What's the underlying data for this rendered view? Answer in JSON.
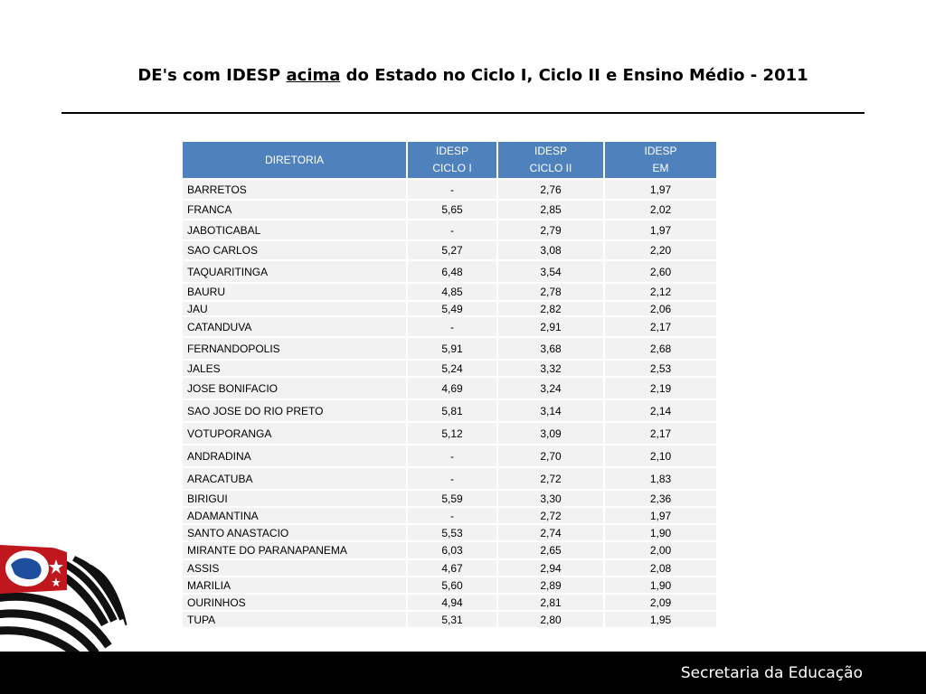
{
  "title": {
    "prefix": "DE's com IDESP",
    "emphasis": "acima",
    "suffix": "do Estado no Ciclo I, Ciclo II e Ensino Médio - 2011"
  },
  "table": {
    "headers": [
      {
        "line1": "DIRETORIA",
        "line2": ""
      },
      {
        "line1": "IDESP",
        "line2": "CICLO I"
      },
      {
        "line1": "IDESP",
        "line2": "CICLO II"
      },
      {
        "line1": "IDESP",
        "line2": "EM"
      }
    ],
    "rows": [
      [
        "BARRETOS",
        "-",
        "2,76",
        "1,97"
      ],
      [
        "FRANCA",
        "5,65",
        "2,85",
        "2,02"
      ],
      [
        "JABOTICABAL",
        "-",
        "2,79",
        "1,97"
      ],
      [
        "SAO CARLOS",
        "5,27",
        "3,08",
        "2,20"
      ],
      [
        "TAQUARITINGA",
        "6,48",
        "3,54",
        "2,60"
      ],
      [
        "BAURU",
        "4,85",
        "2,78",
        "2,12"
      ],
      [
        "JAU",
        "5,49",
        "2,82",
        "2,06"
      ],
      [
        "CATANDUVA",
        "-",
        "2,91",
        "2,17"
      ],
      [
        "FERNANDOPOLIS",
        "5,91",
        "3,68",
        "2,68"
      ],
      [
        "JALES",
        "5,24",
        "3,32",
        "2,53"
      ],
      [
        "JOSE BONIFACIO",
        "4,69",
        "3,24",
        "2,19"
      ],
      [
        "SAO JOSE DO RIO PRETO",
        "5,81",
        "3,14",
        "2,14"
      ],
      [
        "VOTUPORANGA",
        "5,12",
        "3,09",
        "2,17"
      ],
      [
        "ANDRADINA",
        "-",
        "2,70",
        "2,10"
      ],
      [
        "ARACATUBA",
        "-",
        "2,72",
        "1,83"
      ],
      [
        "BIRIGUI",
        "5,59",
        "3,30",
        "2,36"
      ],
      [
        "ADAMANTINA",
        "-",
        "2,72",
        "1,97"
      ],
      [
        "SANTO ANASTACIO",
        "5,53",
        "2,74",
        "1,90"
      ],
      [
        "MIRANTE DO PARANAPANEMA",
        "6,03",
        "2,65",
        "2,00"
      ],
      [
        "ASSIS",
        "4,67",
        "2,94",
        "2,08"
      ],
      [
        "MARILIA",
        "5,60",
        "2,89",
        "1,90"
      ],
      [
        "OURINHOS",
        "4,94",
        "2,81",
        "2,09"
      ],
      [
        "TUPA",
        "5,31",
        "2,80",
        "1,95"
      ]
    ]
  },
  "footer": {
    "text": "Secretaria da Educação"
  },
  "colors": {
    "header_bg": "#4f81bd",
    "row_bg": "#f2f2f2",
    "footer_bg": "#000000"
  },
  "emblem": {
    "icon": "sao-paulo-flag-emblem"
  }
}
